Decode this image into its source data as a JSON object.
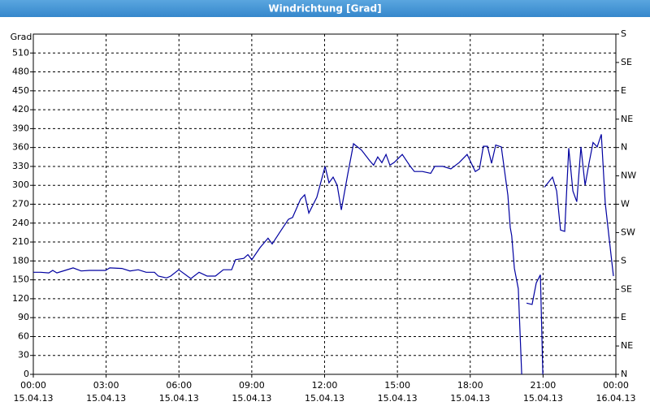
{
  "chart_data": {
    "type": "line",
    "title": "Windrichtung [Grad]",
    "y_label": "Grad",
    "xlim": [
      0,
      24
    ],
    "xticks": [
      {
        "value": 0,
        "label": "00:00",
        "date": "15.04.13"
      },
      {
        "value": 3,
        "label": "03:00",
        "date": "15.04.13"
      },
      {
        "value": 6,
        "label": "06:00",
        "date": "15.04.13"
      },
      {
        "value": 9,
        "label": "09:00",
        "date": "15.04.13"
      },
      {
        "value": 12,
        "label": "12:00",
        "date": "15.04.13"
      },
      {
        "value": 15,
        "label": "15:00",
        "date": "15.04.13"
      },
      {
        "value": 18,
        "label": "18:00",
        "date": "15.04.13"
      },
      {
        "value": 21,
        "label": "21:00",
        "date": "15.04.13"
      },
      {
        "value": 24,
        "label": "00:00",
        "date": "16.04.13"
      }
    ],
    "ylim": [
      0,
      540
    ],
    "yticks": [
      0,
      30,
      60,
      90,
      120,
      150,
      180,
      210,
      240,
      270,
      300,
      330,
      360,
      390,
      420,
      450,
      480,
      510
    ],
    "y2lim": [
      0,
      540
    ],
    "y2ticks": [
      {
        "value": 0,
        "label": "N"
      },
      {
        "value": 45,
        "label": "NE"
      },
      {
        "value": 90,
        "label": "E"
      },
      {
        "value": 135,
        "label": "SE"
      },
      {
        "value": 180,
        "label": "S"
      },
      {
        "value": 225,
        "label": "SW"
      },
      {
        "value": 270,
        "label": "W"
      },
      {
        "value": 315,
        "label": "NW"
      },
      {
        "value": 360,
        "label": "N"
      },
      {
        "value": 405,
        "label": "NE"
      },
      {
        "value": 450,
        "label": "E"
      },
      {
        "value": 495,
        "label": "SE"
      },
      {
        "value": 540,
        "label": "S"
      }
    ],
    "grid": true,
    "x": [
      0,
      0.3,
      0.64,
      0.8,
      0.97,
      1.31,
      1.64,
      1.97,
      2.31,
      2.98,
      3.15,
      3.65,
      3.98,
      4.32,
      4.65,
      4.99,
      5.15,
      5.49,
      5.66,
      5.99,
      6.49,
      6.83,
      7.16,
      7.5,
      7.83,
      8.17,
      8.33,
      8.67,
      8.84,
      9.0,
      9.34,
      9.67,
      9.84,
      10.18,
      10.51,
      10.68,
      11.01,
      11.18,
      11.35,
      11.68,
      12.02,
      12.18,
      12.35,
      12.52,
      12.69,
      12.95,
      13.19,
      13.52,
      13.86,
      14.02,
      14.19,
      14.36,
      14.53,
      14.69,
      14.86,
      15.2,
      15.53,
      15.7,
      16.03,
      16.37,
      16.54,
      16.87,
      17.2,
      17.54,
      17.87,
      18.21,
      18.38,
      18.54,
      18.71,
      18.88,
      19.05,
      19.28,
      19.55,
      19.65,
      19.71,
      19.82,
      19.98,
      20.12,
      20.2,
      20.32,
      20.55,
      20.72,
      20.89,
      20.99,
      21.03,
      21.06,
      21.39,
      21.56,
      21.72,
      21.89,
      22.06,
      22.23,
      22.39,
      22.56,
      22.73,
      22.9,
      23.06,
      23.23,
      23.4,
      23.56,
      23.73,
      23.9
    ],
    "series": [
      {
        "name": "Windrichtung",
        "color": "#0000a0",
        "values": [
          162,
          162,
          161,
          165,
          161,
          165,
          169,
          164,
          165,
          165,
          169,
          168,
          164,
          166,
          162,
          162,
          156,
          153,
          156,
          166,
          152,
          162,
          156,
          156,
          166,
          166,
          182,
          184,
          190,
          182,
          201,
          216,
          207,
          227,
          246,
          249,
          278,
          285,
          256,
          281,
          330,
          304,
          313,
          300,
          261,
          317,
          366,
          356,
          339,
          332,
          345,
          336,
          349,
          332,
          336,
          349,
          330,
          322,
          322,
          319,
          330,
          330,
          326,
          336,
          349,
          322,
          326,
          362,
          362,
          335,
          364,
          361,
          284,
          233,
          220,
          168,
          136,
          0,
          null,
          113,
          111,
          145,
          158,
          0,
          null,
          297,
          313,
          291,
          229,
          227,
          359,
          291,
          274,
          361,
          300,
          336,
          368,
          361,
          381,
          272,
          214,
          156
        ]
      }
    ]
  }
}
